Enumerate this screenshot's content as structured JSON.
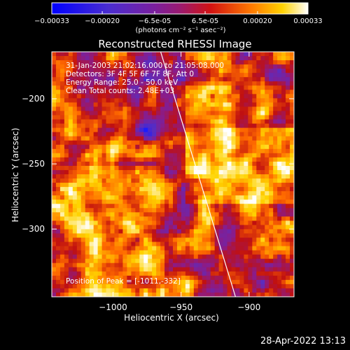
{
  "colorbar": {
    "ticks": [
      "-0.00033",
      "-0.00020",
      "-6.5e-05",
      "6.5e-05",
      "0.00020",
      "0.00033"
    ],
    "range": [
      -0.00033,
      0.00033
    ],
    "units": "(photons cm⁻² s⁻¹ asec⁻²)"
  },
  "title": "Reconstructed RHESSI Image",
  "annotations": {
    "time": "31-Jan-2003 21:02:16.000 to 21:05:08.000",
    "detectors": "Detectors: 3F 4F 5F 6F 7F 8F, Att 0",
    "energy": "Energy Range: 25.0 - 50.0 keV",
    "clean": "Clean    Total counts: 2.48E+03",
    "peak": "Position of Peak = [-1011,-332]"
  },
  "timestamp": "28-Apr-2022 13:13",
  "chart_data": {
    "type": "heatmap",
    "title": "Reconstructed RHESSI Image",
    "xlabel": "Heliocentric X (arcsec)",
    "ylabel": "Heliocentric Y (arcsec)",
    "xlim": [
      -1045,
      -867
    ],
    "ylim": [
      -352,
      -164
    ],
    "x_ticks": [
      {
        "value": -1000,
        "label": "−1000"
      },
      {
        "value": -950,
        "label": "−950"
      },
      {
        "value": -900,
        "label": "−900"
      }
    ],
    "y_ticks": [
      {
        "value": -200,
        "label": "−200"
      },
      {
        "value": -250,
        "label": "−250"
      },
      {
        "value": -300,
        "label": "−300"
      }
    ],
    "limb_line": [
      [
        -965,
        -164
      ],
      [
        -910,
        -352
      ]
    ],
    "color_range": [
      -0.00033,
      0.00033
    ],
    "colormap": [
      "#000000",
      "#1a1aff",
      "#5a2dbf",
      "#8a1c8a",
      "#c01010",
      "#ff6a00",
      "#ffd400",
      "#ffffff"
    ]
  }
}
